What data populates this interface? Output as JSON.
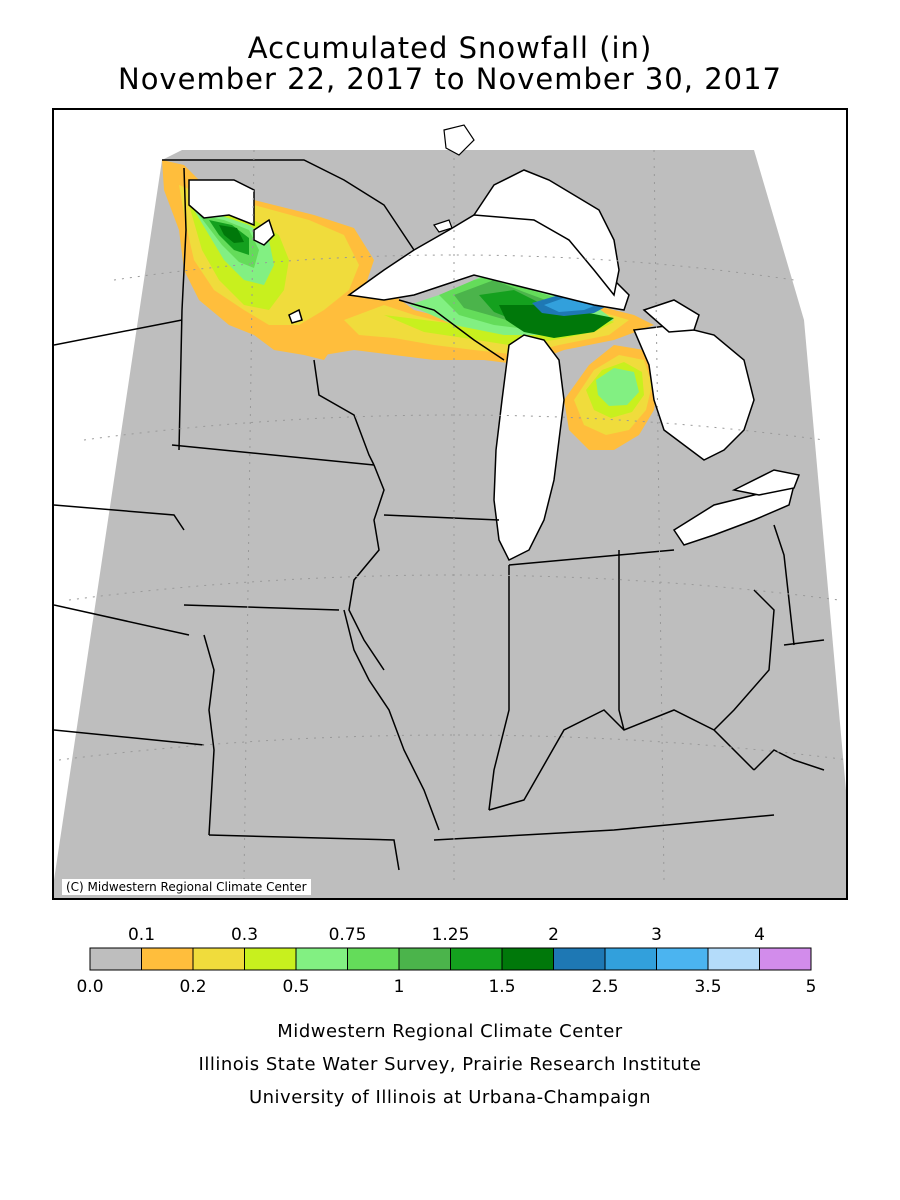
{
  "title": {
    "line1": "Accumulated Snowfall (in)",
    "line2": "November 22, 2017 to November 30, 2017"
  },
  "map": {
    "copyright": "(C) Midwestern Regional Climate Center",
    "colors": {
      "background": "#bebebe",
      "water": "#ffffff",
      "border": "#000000"
    }
  },
  "legend": {
    "top_labels": [
      "0.1",
      "0.3",
      "0.75",
      "1.25",
      "2",
      "3",
      "4"
    ],
    "bottom_labels": [
      "0.0",
      "0.2",
      "0.5",
      "1",
      "1.5",
      "2.5",
      "3.5",
      "5"
    ],
    "bins": [
      {
        "range": "0.0-0.1",
        "color": "#bebebe"
      },
      {
        "range": "0.1-0.2",
        "color": "#ffbe3c"
      },
      {
        "range": "0.2-0.3",
        "color": "#f0dc3c"
      },
      {
        "range": "0.3-0.5",
        "color": "#c8f01e"
      },
      {
        "range": "0.5-0.75",
        "color": "#82f082"
      },
      {
        "range": "0.75-1",
        "color": "#64dc5a"
      },
      {
        "range": "1-1.25",
        "color": "#4bb44b"
      },
      {
        "range": "1.25-1.5",
        "color": "#14a01e"
      },
      {
        "range": "1.5-2",
        "color": "#00780a"
      },
      {
        "range": "2-2.5",
        "color": "#1e78b4"
      },
      {
        "range": "2.5-3",
        "color": "#32a0dc"
      },
      {
        "range": "3-3.5",
        "color": "#4bb4f0"
      },
      {
        "range": "3.5-4",
        "color": "#b4dcfa"
      },
      {
        "range": "4-5",
        "color": "#d28ceb"
      }
    ]
  },
  "footer": {
    "line1": "Midwestern Regional Climate Center",
    "line2": "Illinois State Water Survey, Prairie Research Institute",
    "line3": "University of Illinois at Urbana-Champaign"
  }
}
